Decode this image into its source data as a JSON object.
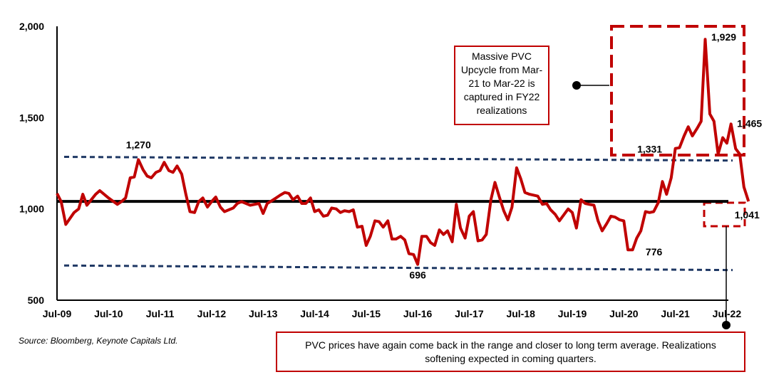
{
  "chart_data": {
    "type": "line",
    "source": "Source: Bloomberg, Keynote Capitals Ltd.",
    "ylim": [
      500,
      2000
    ],
    "y_ticks": [
      "2,000",
      "1,500",
      "1,000",
      "500"
    ],
    "x_ticks": [
      "Jul-09",
      "Jul-10",
      "Jul-11",
      "Jul-12",
      "Jul-13",
      "Jul-14",
      "Jul-15",
      "Jul-16",
      "Jul-17",
      "Jul-18",
      "Jul-19",
      "Jul-20",
      "Jul-21",
      "Jul-22"
    ],
    "average_value": 1041,
    "band_upper": [
      1285,
      1265
    ],
    "band_lower": [
      690,
      665
    ],
    "series": [
      {
        "color": "#c00000",
        "points": [
          [
            0.0,
            1085
          ],
          [
            0.08,
            1040
          ],
          [
            0.17,
            915
          ],
          [
            0.33,
            980
          ],
          [
            0.42,
            1000
          ],
          [
            0.5,
            1080
          ],
          [
            0.58,
            1020
          ],
          [
            0.75,
            1080
          ],
          [
            0.83,
            1100
          ],
          [
            1.0,
            1060
          ],
          [
            1.17,
            1025
          ],
          [
            1.25,
            1040
          ],
          [
            1.33,
            1060
          ],
          [
            1.42,
            1170
          ],
          [
            1.5,
            1175
          ],
          [
            1.58,
            1270
          ],
          [
            1.67,
            1215
          ],
          [
            1.75,
            1180
          ],
          [
            1.83,
            1170
          ],
          [
            1.92,
            1200
          ],
          [
            2.0,
            1210
          ],
          [
            2.08,
            1255
          ],
          [
            2.17,
            1210
          ],
          [
            2.25,
            1200
          ],
          [
            2.33,
            1235
          ],
          [
            2.42,
            1190
          ],
          [
            2.5,
            1080
          ],
          [
            2.58,
            985
          ],
          [
            2.67,
            980
          ],
          [
            2.75,
            1040
          ],
          [
            2.83,
            1060
          ],
          [
            2.92,
            1010
          ],
          [
            3.0,
            1040
          ],
          [
            3.08,
            1065
          ],
          [
            3.17,
            1010
          ],
          [
            3.25,
            985
          ],
          [
            3.42,
            1005
          ],
          [
            3.5,
            1030
          ],
          [
            3.58,
            1040
          ],
          [
            3.75,
            1020
          ],
          [
            3.92,
            1030
          ],
          [
            4.0,
            975
          ],
          [
            4.08,
            1030
          ],
          [
            4.17,
            1045
          ],
          [
            4.25,
            1060
          ],
          [
            4.33,
            1075
          ],
          [
            4.42,
            1090
          ],
          [
            4.5,
            1085
          ],
          [
            4.58,
            1050
          ],
          [
            4.67,
            1070
          ],
          [
            4.75,
            1030
          ],
          [
            4.83,
            1030
          ],
          [
            4.92,
            1060
          ],
          [
            5.0,
            985
          ],
          [
            5.08,
            995
          ],
          [
            5.17,
            960
          ],
          [
            5.25,
            965
          ],
          [
            5.33,
            1005
          ],
          [
            5.42,
            1000
          ],
          [
            5.5,
            980
          ],
          [
            5.58,
            990
          ],
          [
            5.67,
            985
          ],
          [
            5.75,
            995
          ],
          [
            5.83,
            900
          ],
          [
            5.92,
            905
          ],
          [
            6.0,
            800
          ],
          [
            6.08,
            850
          ],
          [
            6.17,
            935
          ],
          [
            6.25,
            930
          ],
          [
            6.33,
            900
          ],
          [
            6.42,
            935
          ],
          [
            6.5,
            835
          ],
          [
            6.58,
            835
          ],
          [
            6.67,
            850
          ],
          [
            6.75,
            830
          ],
          [
            6.83,
            755
          ],
          [
            6.92,
            750
          ],
          [
            7.0,
            696
          ],
          [
            7.08,
            850
          ],
          [
            7.17,
            850
          ],
          [
            7.25,
            815
          ],
          [
            7.33,
            800
          ],
          [
            7.42,
            885
          ],
          [
            7.5,
            860
          ],
          [
            7.58,
            880
          ],
          [
            7.67,
            820
          ],
          [
            7.75,
            1025
          ],
          [
            7.83,
            895
          ],
          [
            7.92,
            840
          ],
          [
            8.0,
            960
          ],
          [
            8.08,
            985
          ],
          [
            8.17,
            825
          ],
          [
            8.25,
            830
          ],
          [
            8.33,
            860
          ],
          [
            8.42,
            1050
          ],
          [
            8.5,
            1145
          ],
          [
            8.58,
            1070
          ],
          [
            8.67,
            990
          ],
          [
            8.75,
            940
          ],
          [
            8.83,
            1010
          ],
          [
            8.92,
            1225
          ],
          [
            9.0,
            1165
          ],
          [
            9.08,
            1090
          ],
          [
            9.17,
            1080
          ],
          [
            9.33,
            1070
          ],
          [
            9.42,
            1025
          ],
          [
            9.5,
            1030
          ],
          [
            9.58,
            995
          ],
          [
            9.67,
            970
          ],
          [
            9.75,
            935
          ],
          [
            9.83,
            965
          ],
          [
            9.92,
            1000
          ],
          [
            10.0,
            980
          ],
          [
            10.08,
            895
          ],
          [
            10.17,
            1050
          ],
          [
            10.25,
            1030
          ],
          [
            10.33,
            1025
          ],
          [
            10.42,
            1020
          ],
          [
            10.5,
            935
          ],
          [
            10.58,
            880
          ],
          [
            10.67,
            920
          ],
          [
            10.75,
            960
          ],
          [
            10.83,
            955
          ],
          [
            10.92,
            940
          ],
          [
            11.0,
            935
          ],
          [
            11.08,
            776
          ],
          [
            11.17,
            776
          ],
          [
            11.25,
            840
          ],
          [
            11.33,
            880
          ],
          [
            11.42,
            985
          ],
          [
            11.5,
            980
          ],
          [
            11.58,
            985
          ],
          [
            11.67,
            1035
          ],
          [
            11.75,
            1150
          ],
          [
            11.83,
            1080
          ],
          [
            11.92,
            1170
          ],
          [
            12.0,
            1331
          ],
          [
            12.08,
            1335
          ],
          [
            12.17,
            1400
          ],
          [
            12.25,
            1450
          ],
          [
            12.33,
            1400
          ],
          [
            12.42,
            1440
          ],
          [
            12.5,
            1480
          ],
          [
            12.58,
            1929
          ],
          [
            12.67,
            1520
          ],
          [
            12.75,
            1480
          ],
          [
            12.83,
            1300
          ],
          [
            12.92,
            1390
          ],
          [
            13.0,
            1360
          ],
          [
            13.08,
            1465
          ],
          [
            13.17,
            1330
          ],
          [
            13.25,
            1300
          ],
          [
            13.33,
            1120
          ],
          [
            13.42,
            1041
          ]
        ]
      }
    ],
    "data_labels": [
      {
        "text": "1,270",
        "x": 1.58,
        "y": 1270
      },
      {
        "text": "696",
        "x": 7.0,
        "y": 696
      },
      {
        "text": "776",
        "x": 11.17,
        "y": 776
      },
      {
        "text": "1,331",
        "x": 12.0,
        "y": 1331
      },
      {
        "text": "1,929",
        "x": 12.58,
        "y": 1929
      },
      {
        "text": "1,465",
        "x": 13.08,
        "y": 1465
      },
      {
        "text": "1,041",
        "x": 13.42,
        "y": 1041
      }
    ],
    "annotations": {
      "top": "Massive PVC Upcycle from Mar-21 to Mar-22 is captured in FY22 realizations",
      "bottom": "PVC prices have again come back in the range and closer to long term average. Realizations softening expected in coming quarters."
    },
    "colors": {
      "line": "#c00000",
      "band": "#1f3864",
      "average": "#000000",
      "highlight": "#c00000"
    },
    "grid": false,
    "legend": "none"
  }
}
